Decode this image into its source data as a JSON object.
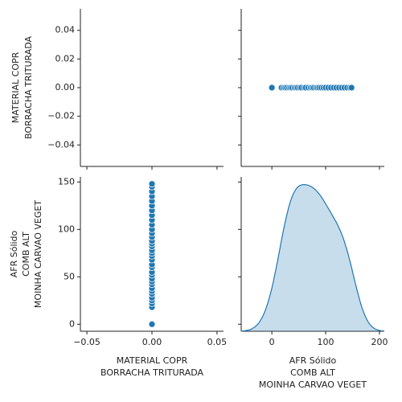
{
  "chart_data": [
    {
      "type": "empty",
      "ylabel": [
        "MATERIAL COPR",
        "BORRACHA TRITURADA"
      ],
      "ylim": [
        -0.055,
        0.055
      ],
      "yticks": [
        {
          "value": -0.04,
          "label": "−0.04"
        },
        {
          "value": -0.02,
          "label": "−0.02"
        },
        {
          "value": 0,
          "label": "0.00"
        },
        0.02,
        0.04
      ]
    },
    {
      "type": "scatter",
      "color": "#1f77b4",
      "x": [
        0,
        18,
        22,
        25,
        28,
        32,
        35,
        38,
        42,
        45,
        48,
        52,
        55,
        60,
        63,
        68,
        72,
        75,
        78,
        82,
        85,
        88,
        92,
        96,
        100,
        105,
        110,
        115,
        120,
        125,
        130,
        135,
        140,
        145,
        148
      ],
      "y": [
        0,
        0,
        0,
        0,
        0,
        0,
        0,
        0,
        0,
        0,
        0,
        0,
        0,
        0,
        0,
        0,
        0,
        0,
        0,
        0,
        0,
        0,
        0,
        0,
        0,
        0,
        0,
        0,
        0,
        0,
        0,
        0,
        0,
        0,
        0
      ],
      "xlim": [
        -57,
        209
      ],
      "ylim": [
        -0.055,
        0.055
      ]
    },
    {
      "type": "scatter",
      "color": "#1f77b4",
      "x": [
        0,
        0,
        0,
        0,
        0,
        0,
        0,
        0,
        0,
        0,
        0,
        0,
        0,
        0,
        0,
        0,
        0,
        0,
        0,
        0,
        0,
        0,
        0,
        0,
        0,
        0,
        0,
        0,
        0,
        0,
        0,
        0,
        0,
        0,
        0
      ],
      "y": [
        0,
        18,
        22,
        25,
        28,
        32,
        35,
        38,
        42,
        45,
        48,
        52,
        55,
        60,
        63,
        68,
        72,
        75,
        78,
        82,
        85,
        88,
        92,
        96,
        100,
        105,
        110,
        115,
        120,
        125,
        130,
        135,
        140,
        145,
        148
      ],
      "xlim": [
        -0.055,
        0.055
      ],
      "ylim": [
        -7.4,
        155.4
      ],
      "xticks": [
        {
          "value": -0.05,
          "label": "−0.05"
        },
        {
          "value": 0,
          "label": "0.00"
        },
        0.05
      ],
      "yticks": [
        0,
        50,
        100,
        150
      ],
      "xlabel": [
        "MATERIAL COPR",
        "BORRACHA TRITURADA"
      ],
      "ylabel": [
        "AFR Sólido",
        "COMB ALT",
        "MOINHA CARVAO VEGET"
      ]
    },
    {
      "type": "kde",
      "color": "#1f77b4",
      "values": [
        0,
        18,
        22,
        25,
        28,
        32,
        35,
        38,
        42,
        45,
        48,
        52,
        55,
        60,
        63,
        68,
        72,
        75,
        78,
        82,
        85,
        88,
        92,
        96,
        100,
        105,
        110,
        115,
        120,
        125,
        130,
        135,
        140,
        145,
        148
      ],
      "xlim": [
        -57,
        209
      ],
      "xticks": [
        0,
        100,
        200
      ],
      "xlabel": [
        "AFR Sólido",
        "COMB ALT",
        "MOINHA CARVAO VEGET"
      ]
    }
  ]
}
